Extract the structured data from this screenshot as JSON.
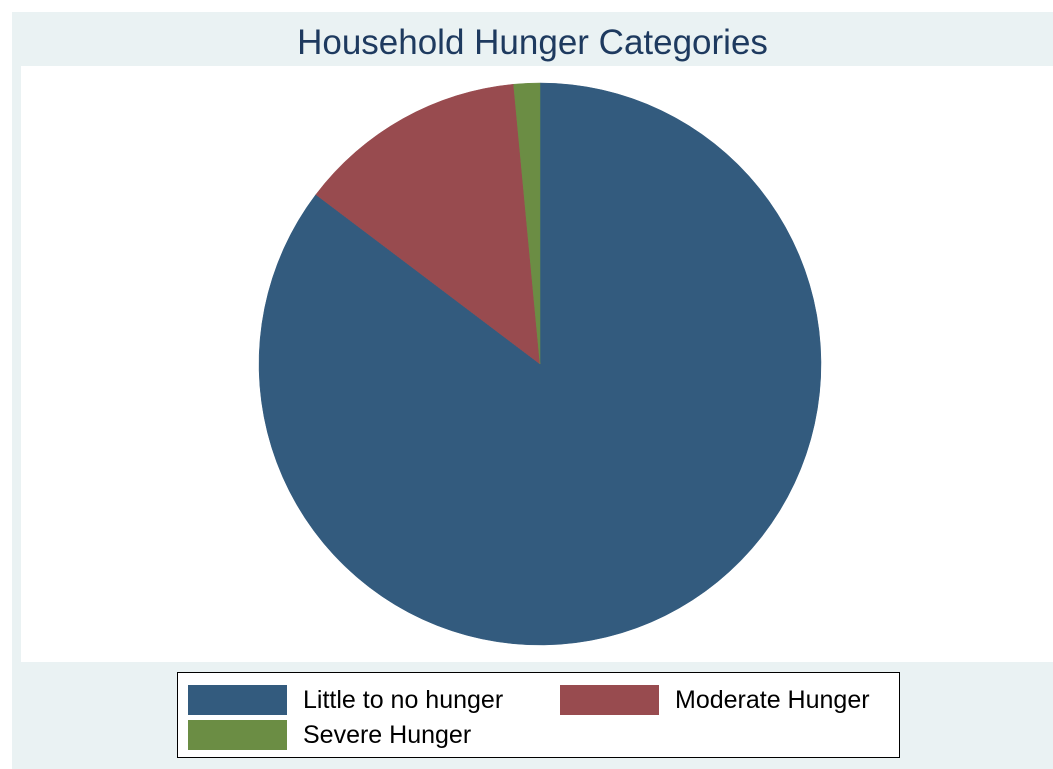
{
  "chart_data": {
    "type": "pie",
    "title": "Household Hunger Categories",
    "categories": [
      "Little to no hunger",
      "Moderate Hunger",
      "Severe Hunger"
    ],
    "values": [
      85.3,
      13.2,
      1.5
    ],
    "value_unit": "percent (estimated)",
    "colors": [
      "#335b7e",
      "#984b4f",
      "#6b8d44"
    ],
    "start_angle": "12 o'clock",
    "direction": "clockwise",
    "legend": {
      "position": "bottom",
      "columns": 2
    }
  }
}
